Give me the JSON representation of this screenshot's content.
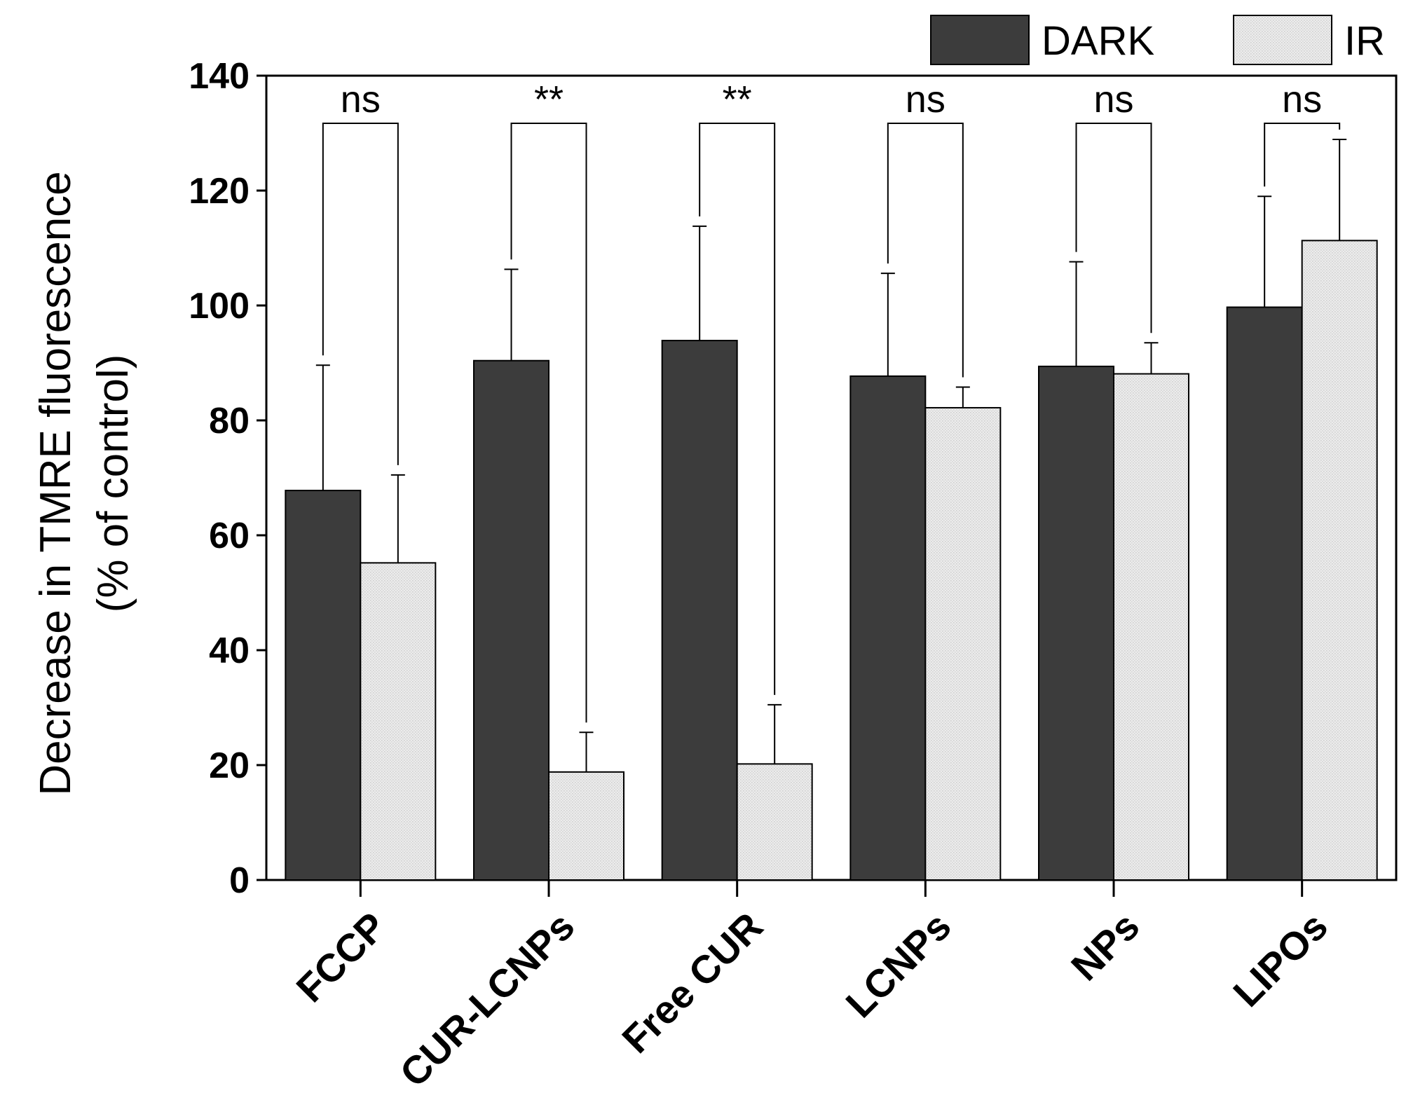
{
  "chart_data": {
    "type": "bar",
    "title": "",
    "xlabel": "",
    "ylabel_line1": "Decrease in TMRE fluorescence",
    "ylabel_line2": "(% of control)",
    "ylim": [
      0,
      140
    ],
    "yticks": [
      0,
      20,
      40,
      60,
      80,
      100,
      120,
      140
    ],
    "categories": [
      "FCCP",
      "CUR-LCNPs",
      "Free CUR",
      "LCNPs",
      "NPs",
      "LIPOs"
    ],
    "series": [
      {
        "name": "DARK",
        "color": "#3c3c3c",
        "values": [
          67.8,
          90.4,
          93.9,
          87.7,
          89.4,
          99.7
        ],
        "errors": [
          21.8,
          15.9,
          19.9,
          17.9,
          18.2,
          19.3
        ]
      },
      {
        "name": "IR",
        "color": "#e8e8e8",
        "values": [
          55.2,
          18.8,
          20.2,
          82.2,
          88.1,
          111.3
        ],
        "errors": [
          15.3,
          6.9,
          10.3,
          3.6,
          5.4,
          17.6
        ]
      }
    ],
    "significance": [
      "ns",
      "**",
      "**",
      "ns",
      "ns",
      "ns"
    ],
    "legend_position": "top-right",
    "grid": false
  }
}
